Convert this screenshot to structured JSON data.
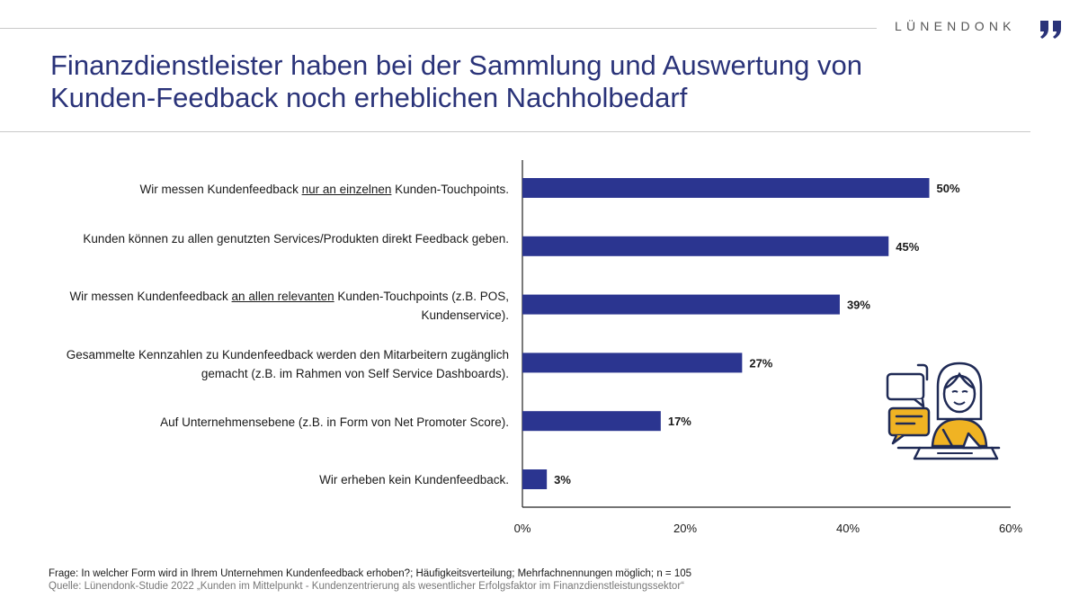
{
  "header": {
    "brand": "LÜNENDONK",
    "title_line1": "Finanzdienstleister haben bei der Sammlung und Auswertung von",
    "title_line2": "Kunden-Feedback noch erheblichen Nachholbedarf"
  },
  "labels": [
    {
      "pre": "Wir messen Kundenfeedback ",
      "u": "nur an einzelnen",
      "post": " Kunden-Touchpoints."
    },
    {
      "pre": "Kunden können zu allen genutzten Services/Produkten direkt Feedback geben.",
      "u": "",
      "post": ""
    },
    {
      "pre": "Wir messen Kundenfeedback ",
      "u": "an allen relevanten",
      "post": " Kunden-Touchpoints (z.B. POS, Kundenservice)."
    },
    {
      "pre": "Gesammelte Kennzahlen zu Kundenfeedback werden den Mitarbeitern zugänglich gemacht (z.B. im Rahmen von Self Service Dashboards).",
      "u": "",
      "post": ""
    },
    {
      "pre": "Auf Unternehmensebene (z.B. in Form von Net Promoter Score).",
      "u": "",
      "post": ""
    },
    {
      "pre": "Wir erheben kein Kundenfeedback.",
      "u": "",
      "post": ""
    }
  ],
  "chart_data": {
    "type": "bar",
    "orientation": "horizontal",
    "categories": [
      "Wir messen Kundenfeedback nur an einzelnen Kunden-Touchpoints.",
      "Kunden können zu allen genutzten Services/Produkten direkt Feedback geben.",
      "Wir messen Kundenfeedback an allen relevanten Kunden-Touchpoints (z.B. POS, Kundenservice).",
      "Gesammelte Kennzahlen zu Kundenfeedback werden den Mitarbeitern zugänglich gemacht (z.B. im Rahmen von Self Service Dashboards).",
      "Auf Unternehmensebene (z.B. in Form von Net Promoter Score).",
      "Wir erheben kein Kundenfeedback."
    ],
    "values": [
      50,
      45,
      39,
      27,
      17,
      3
    ],
    "value_labels": [
      "50%",
      "45%",
      "39%",
      "27%",
      "17%",
      "3%"
    ],
    "xlim": [
      0,
      60
    ],
    "xticks": [
      0,
      20,
      40,
      60
    ],
    "xtick_labels": [
      "0%",
      "20%",
      "40%",
      "60%"
    ],
    "bar_color": "#2b3590",
    "grid": false,
    "legend": "none"
  },
  "footnotes": {
    "question": "Frage: In welcher Form wird in Ihrem Unternehmen Kundenfeedback erhoben?; Häufigkeitsverteilung; Mehrfachnennungen möglich; n = 105",
    "source": "Quelle: Lünendonk-Studie 2022 „Kunden im Mittelpunkt - Kundenzentrierung als wesentlicher Erfolgsfaktor im Finanzdienstleistungssektor“"
  },
  "colors": {
    "title": "#2a3379",
    "accent": "#f0b323",
    "navy": "#2b3590"
  }
}
